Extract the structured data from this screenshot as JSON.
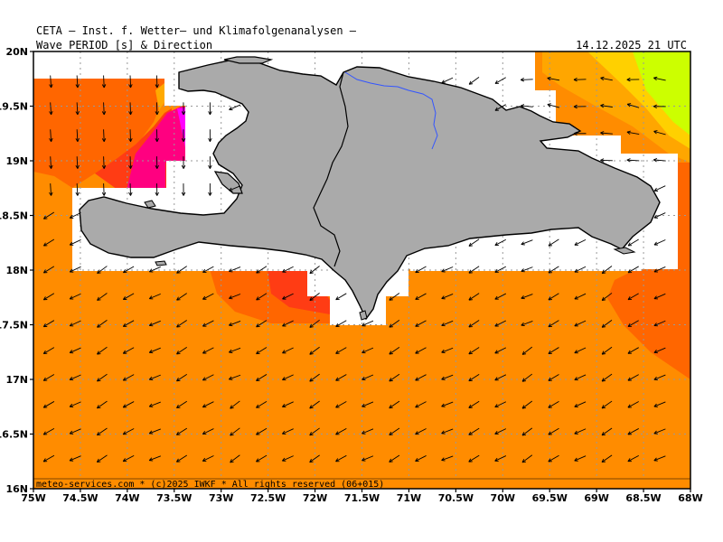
{
  "header": {
    "title": "CETA — Inst. f. Wetter— und Klimafolgenanalysen —",
    "product": "Wave PERIOD [s] & Direction",
    "timestamp": "14.12.2025 21 UTC"
  },
  "footer": "meteo-services.com * (c)2025 IWKF * All rights reserved (06+015)",
  "axes": {
    "lat_labels": [
      "20N",
      "19.5N",
      "19N",
      "18.5N",
      "18N",
      "17.5N",
      "17N",
      "16.5N",
      "16N"
    ],
    "lon_labels": [
      "75W",
      "74.5W",
      "74W",
      "73.5W",
      "73W",
      "72.5W",
      "72W",
      "71.5W",
      "71W",
      "70.5W",
      "70W",
      "69.5W",
      "69W",
      "68.5W",
      "68W"
    ]
  },
  "colors": {
    "sea_base": "#ff8c00",
    "period_low": "#ff6600",
    "period_mid": "#ff3c14",
    "period_high": "#ff0080",
    "period_max": "#ff00ff",
    "east_band": "#ffa600",
    "east_band_2": "#ffd000",
    "east_max": "#ccff00",
    "land": "#aaaaaa",
    "nodata": "#ffffff",
    "grid": "#999999"
  },
  "arrows": {
    "dominant_direction": "NW",
    "icon": "direction-arrow-icon"
  }
}
